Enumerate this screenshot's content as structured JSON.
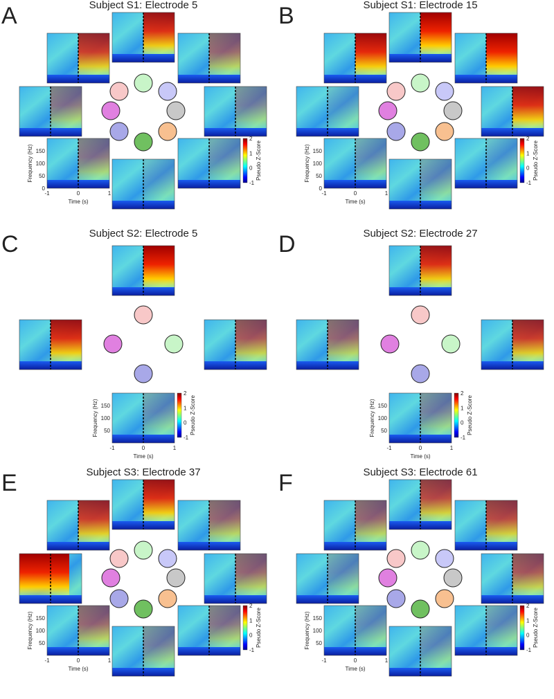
{
  "panels": [
    {
      "letter": "A",
      "title": "Subject S1: Electrode 5",
      "layout": "ring8",
      "y_ticks": [
        150,
        100,
        50,
        0
      ],
      "x_ticks": [
        -1,
        0,
        1
      ],
      "y_label": "Frequency (Hz)",
      "x_label": "Time (s)",
      "colorbar_label": "Pseudo Z-Score",
      "colorbar_ticks": [
        2,
        1,
        0,
        -1
      ]
    },
    {
      "letter": "B",
      "title": "Subject S1: Electrode 15",
      "layout": "ring8",
      "y_ticks": [
        150,
        100,
        50,
        0
      ],
      "x_ticks": [
        -1,
        0,
        1
      ],
      "y_label": "Frequency (Hz)",
      "x_label": "Time (s)",
      "colorbar_label": "Pseudo Z-Score",
      "colorbar_ticks": [
        2,
        1,
        0,
        -1
      ]
    },
    {
      "letter": "C",
      "title": "Subject S2: Electrode 5",
      "layout": "ring4",
      "y_ticks": [
        150,
        100,
        50
      ],
      "x_ticks": [
        -1,
        0,
        1
      ],
      "y_label": "Frequency (Hz)",
      "x_label": "Time (s)",
      "colorbar_label": "Pseudo Z-Score",
      "colorbar_ticks": [
        2,
        1,
        0,
        -1
      ]
    },
    {
      "letter": "D",
      "title": "Subject S2: Electrode 27",
      "layout": "ring4",
      "y_ticks": [
        150,
        100,
        50
      ],
      "x_ticks": [
        -1,
        0,
        1
      ],
      "y_label": "Frequency (Hz)",
      "x_label": "Time (s)",
      "colorbar_label": "Pseudo Z-Score",
      "colorbar_ticks": [
        2,
        1,
        0,
        -1
      ]
    },
    {
      "letter": "E",
      "title": "Subject S3: Electrode 37",
      "layout": "ring8",
      "y_ticks": [
        150,
        100,
        50
      ],
      "x_ticks": [
        -1,
        0,
        1
      ],
      "y_label": "Frequency (Hz)",
      "x_label": "Time (s)",
      "colorbar_label": "Pseudo Z-Score",
      "colorbar_ticks": [
        2,
        1,
        0,
        -1
      ]
    },
    {
      "letter": "F",
      "title": "Subject S3: Electrode 61",
      "layout": "ring8",
      "y_ticks": [
        150,
        100,
        50
      ],
      "x_ticks": [
        -1,
        0,
        1
      ],
      "y_label": "Frequency (Hz)",
      "x_label": "Time (s)",
      "colorbar_label": "Pseudo Z-Score",
      "colorbar_ticks": [
        2,
        1,
        0,
        -1
      ]
    }
  ]
}
